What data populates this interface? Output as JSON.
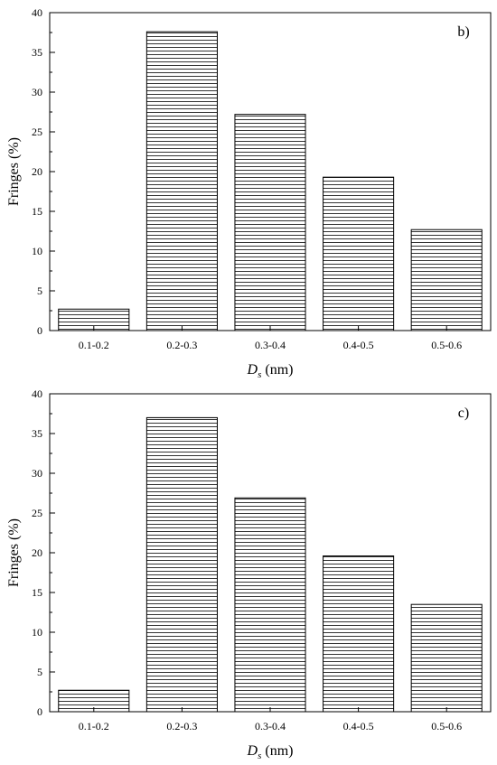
{
  "chart_data": [
    {
      "type": "bar",
      "panel_label": "b)",
      "categories": [
        "0.1-0.2",
        "0.2-0.3",
        "0.3-0.4",
        "0.4-0.5",
        "0.5-0.6"
      ],
      "values": [
        2.7,
        37.6,
        27.2,
        19.3,
        12.7
      ],
      "xlabel_main": "D",
      "xlabel_sub": "s",
      "xlabel_unit": " (nm)",
      "ylabel": "Fringes (%)",
      "ylim": [
        0,
        40
      ],
      "yticks": [
        "0",
        "5",
        "10",
        "15",
        "20",
        "25",
        "30",
        "35",
        "40"
      ],
      "fill_pattern": "horizontal-lines",
      "grid": false
    },
    {
      "type": "bar",
      "panel_label": "c)",
      "categories": [
        "0.1-0.2",
        "0.2-0.3",
        "0.3-0.4",
        "0.4-0.5",
        "0.5-0.6"
      ],
      "values": [
        2.7,
        37.0,
        26.9,
        19.6,
        13.5
      ],
      "xlabel_main": "D",
      "xlabel_sub": "s",
      "xlabel_unit": " (nm)",
      "ylabel": "Fringes (%)",
      "ylim": [
        0,
        40
      ],
      "yticks": [
        "0",
        "5",
        "10",
        "15",
        "20",
        "25",
        "30",
        "35",
        "40"
      ],
      "fill_pattern": "horizontal-lines",
      "grid": false
    }
  ]
}
